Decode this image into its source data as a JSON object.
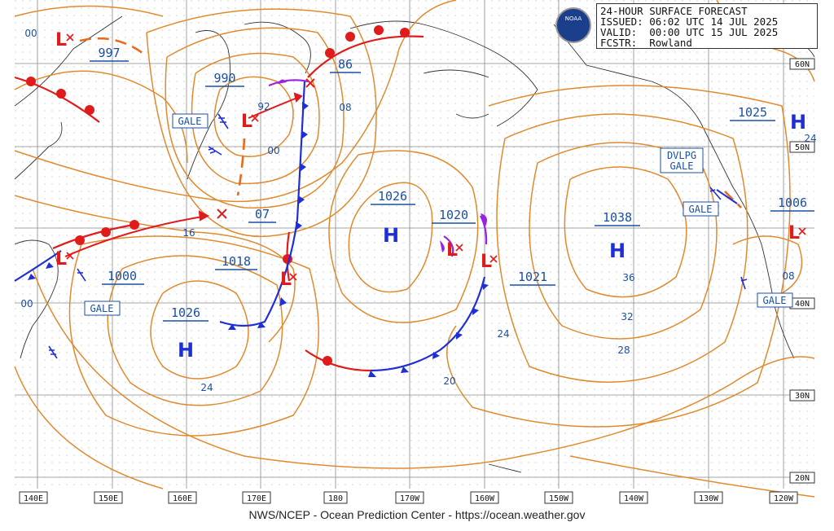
{
  "header": {
    "line1": "24-HOUR SURFACE FORECAST",
    "line2": "ISSUED: 06:02 UTC 14 JUL 2025",
    "line3": "VALID:  00:00 UTC 15 JUL 2025",
    "line4": "FCSTR:  Rowland",
    "logo_text": "NOAA"
  },
  "longitudes": [
    "140E",
    "150E",
    "160E",
    "170E",
    "180",
    "170W",
    "160W",
    "150W",
    "140W",
    "130W",
    "120W"
  ],
  "latitudes": [
    "60N",
    "50N",
    "40N",
    "30N",
    "20N"
  ],
  "pressure_systems": [
    {
      "type": "L",
      "label": "997"
    },
    {
      "type": "L",
      "label": "990"
    },
    {
      "type": "L",
      "label": "1000"
    },
    {
      "type": "L",
      "label": "1018"
    },
    {
      "type": "L",
      "label": "1020"
    },
    {
      "type": "L",
      "label": "1021"
    },
    {
      "type": "L",
      "label": "1006"
    },
    {
      "type": "H",
      "label": "1026"
    },
    {
      "type": "H",
      "label": "1026"
    },
    {
      "type": "H",
      "label": "1038"
    },
    {
      "type": "H",
      "label": "1025"
    }
  ],
  "boxed_values": [
    "86",
    "07"
  ],
  "isobar_labels": [
    "00",
    "92",
    "00",
    "08",
    "16",
    "24",
    "36",
    "32",
    "28",
    "24",
    "20",
    "08",
    "24",
    "00"
  ],
  "warnings": [
    "GALE",
    "GALE",
    "DVLPG",
    "GALE",
    "GALE",
    "GALE"
  ],
  "credit": "NWS/NCEP - Ocean Prediction Center - https://ocean.weather.gov",
  "colors": {
    "isobar": "#e08a2e",
    "cold_front": "#1f2fd6",
    "warm_front": "#e01b1b",
    "occluded": "#9b22e0",
    "label": "#1a4fa3",
    "grid": "#7f7f7f"
  }
}
